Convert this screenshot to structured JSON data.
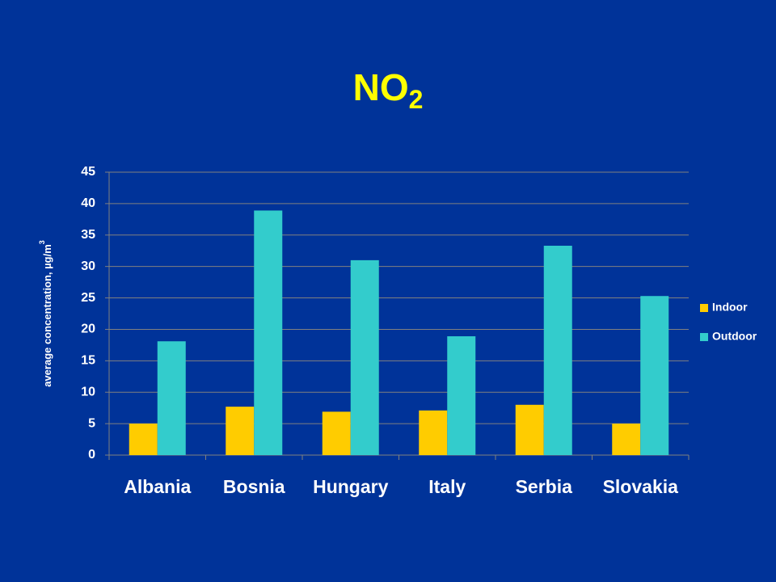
{
  "chart_data": {
    "type": "bar",
    "title": "NO",
    "title_subscript": "2",
    "y_label": "average concentration, µg/m",
    "y_label_superscript": "3",
    "categories": [
      "Albania",
      "Bosnia",
      "Hungary",
      "Italy",
      "Serbia",
      "Slovakia"
    ],
    "series": [
      {
        "name": "Indoor",
        "color": "#ffcc00",
        "values": [
          5.0,
          7.7,
          6.9,
          7.1,
          8.0,
          5.0
        ]
      },
      {
        "name": "Outdoor",
        "color": "#33cccc",
        "values": [
          18.1,
          38.9,
          31.0,
          18.9,
          33.3,
          25.3
        ]
      }
    ],
    "ylim": [
      0,
      45
    ],
    "yticks": [
      0,
      5,
      10,
      15,
      20,
      25,
      30,
      35,
      40,
      45
    ],
    "grid": true,
    "legend": "right"
  }
}
